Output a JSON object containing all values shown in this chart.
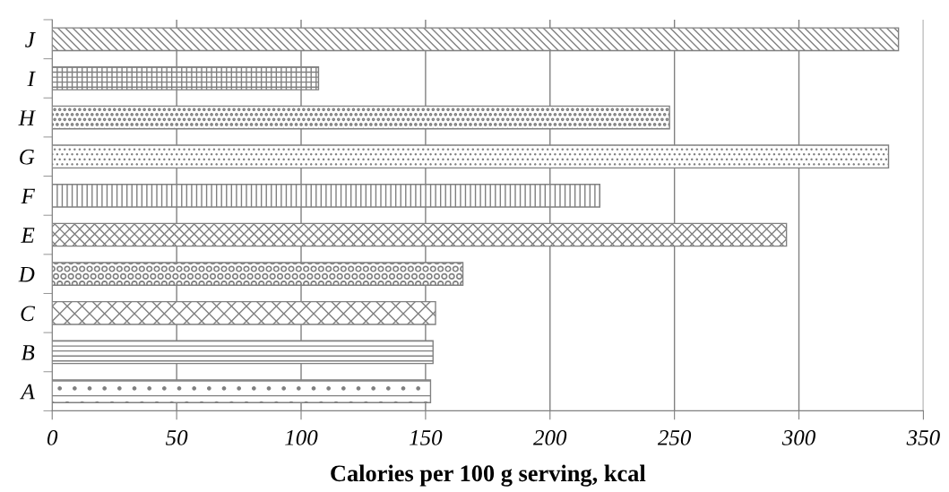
{
  "chart_data": {
    "type": "bar",
    "orientation": "horizontal",
    "xlabel": "Calories per 100 g serving, kcal",
    "categories": [
      "J",
      "I",
      "H",
      "G",
      "F",
      "E",
      "D",
      "C",
      "B",
      "A"
    ],
    "values": [
      340,
      107,
      248,
      336,
      220,
      295,
      165,
      154,
      153,
      152
    ],
    "color": "#808080",
    "xlim": [
      0,
      350
    ],
    "xticks": [
      0,
      50,
      100,
      150,
      200,
      250,
      300,
      350
    ],
    "grid": "x"
  }
}
